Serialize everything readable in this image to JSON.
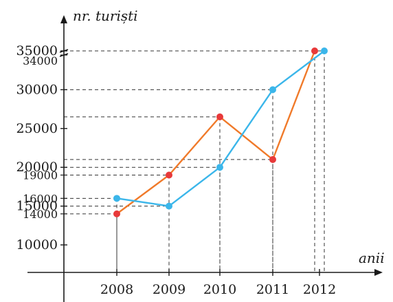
{
  "chart_data": {
    "type": "line",
    "ylabel": "nr. turiști",
    "xlabel": "anii",
    "categories": [
      "2008",
      "2009",
      "2010",
      "2011",
      "2012"
    ],
    "y_ticks_major": [
      10000,
      15000,
      20000,
      25000,
      30000,
      35000
    ],
    "y_ticks_minor_labeled": [
      14000,
      16000,
      19000,
      34000
    ],
    "ylim": [
      9000,
      36500
    ],
    "grid": "dashed guide lines from points to axes",
    "series": [
      {
        "color": "#e8393a",
        "line_color": "#f07a2a",
        "values": [
          14000,
          19000,
          26500,
          21000,
          35000
        ]
      },
      {
        "color": "#3bb6ea",
        "line_color": "#3bb6ea",
        "values": [
          16000,
          15000,
          20000,
          30000,
          35000
        ]
      }
    ]
  }
}
